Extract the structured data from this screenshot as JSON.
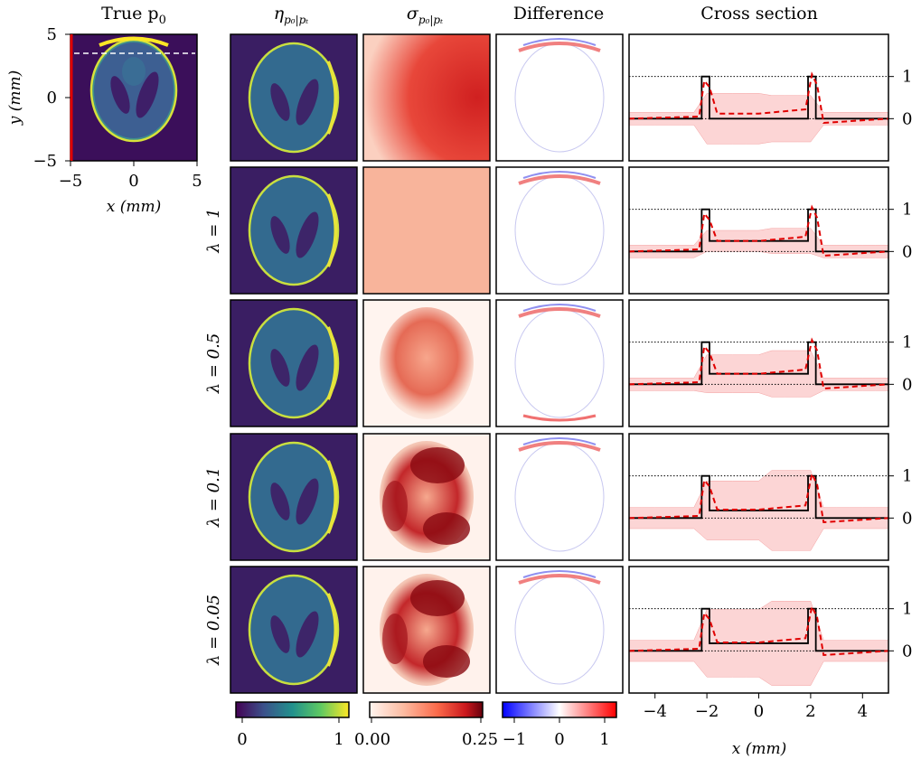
{
  "columns": {
    "true_p0": "True p",
    "true_p0_sub": "0",
    "eta": "η",
    "eta_sub": "p₀|pₜ",
    "sigma": "σ",
    "sigma_sub": "p₀|pₜ",
    "difference": "Difference",
    "cross_section": "Cross section"
  },
  "true_panel": {
    "xlabel": "x (mm)",
    "ylabel": "y (mm)",
    "xticks": [
      "−5",
      "0",
      "5"
    ],
    "yticks": [
      "5",
      "0",
      "−5"
    ]
  },
  "rows": [
    {
      "label": ""
    },
    {
      "label": "λ = 1"
    },
    {
      "label": "λ = 0.5"
    },
    {
      "label": "λ = 0.1"
    },
    {
      "label": "λ = 0.05"
    }
  ],
  "colorbars": {
    "eta": {
      "ticks": [
        "0",
        "1"
      ],
      "colors": [
        "#440154",
        "#3b528b",
        "#21918c",
        "#5ec962",
        "#fde725"
      ]
    },
    "sigma": {
      "ticks": [
        "0.00",
        "0.25"
      ],
      "colors": [
        "#fff5f0",
        "#fcbba1",
        "#fb6a4a",
        "#cb181d",
        "#67000d"
      ]
    },
    "difference": {
      "ticks": [
        "−1",
        "0",
        "1"
      ],
      "colors": [
        "#0000ff",
        "#ffffff",
        "#ff0000"
      ]
    }
  },
  "chart_data": {
    "type": "line",
    "xlabel": "x (mm)",
    "xlim": [
      -5,
      5
    ],
    "ylim": [
      -1,
      2
    ],
    "xticks": [
      "−4",
      "−2",
      "0",
      "2",
      "4"
    ],
    "yticks": [
      "1",
      "0"
    ],
    "true_profile": {
      "x": [
        -5,
        -2.2,
        -2.2,
        -1.9,
        -1.9,
        1.9,
        1.9,
        2.2,
        2.2,
        5
      ]
    },
    "panels": [
      {
        "inner": 0.0,
        "mean_inner": 0.12,
        "band_lo": 0.6,
        "band_hi": 0.55
      },
      {
        "inner": 0.25,
        "mean_inner": 0.25,
        "band_lo": 0.25,
        "band_hi": 0.3
      },
      {
        "inner": 0.25,
        "mean_inner": 0.25,
        "band_lo": 0.45,
        "band_hi": 0.55
      },
      {
        "inner": 0.18,
        "mean_inner": 0.2,
        "band_lo": 0.7,
        "band_hi": 0.95
      },
      {
        "inner": 0.18,
        "mean_inner": 0.2,
        "band_lo": 0.8,
        "band_hi": 1.0
      }
    ]
  }
}
